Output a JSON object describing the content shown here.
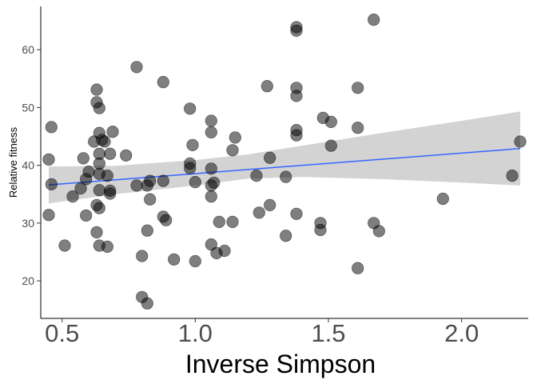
{
  "chart_data": {
    "type": "scatter",
    "title": "",
    "xlabel": "Inverse Simpson",
    "ylabel": "Relative fitness",
    "xlim": [
      0.42,
      2.25
    ],
    "ylim": [
      13.5,
      67.5
    ],
    "x_ticks": [
      0.5,
      1.0,
      1.5,
      2.0
    ],
    "x_tick_labels": [
      "0.5",
      "1.0",
      "1.5",
      "2.0"
    ],
    "y_ticks": [
      20,
      30,
      40,
      50,
      60
    ],
    "y_tick_labels": [
      "20",
      "30",
      "40",
      "50",
      "60"
    ],
    "grid": false,
    "legend": "none",
    "point_color": "#000000",
    "point_opacity": 0.5,
    "trend_color": "#3366FF",
    "band_color": "#D3D3D3",
    "points": [
      [
        0.45,
        41.0
      ],
      [
        0.45,
        31.4
      ],
      [
        0.46,
        46.6
      ],
      [
        0.46,
        36.7
      ],
      [
        0.51,
        26.1
      ],
      [
        0.54,
        34.6
      ],
      [
        0.57,
        36.0
      ],
      [
        0.58,
        41.2
      ],
      [
        0.59,
        37.6
      ],
      [
        0.59,
        31.3
      ],
      [
        0.6,
        38.9
      ],
      [
        0.62,
        44.1
      ],
      [
        0.63,
        53.1
      ],
      [
        0.63,
        50.9
      ],
      [
        0.63,
        28.4
      ],
      [
        0.63,
        33.1
      ],
      [
        0.64,
        49.9
      ],
      [
        0.64,
        45.6
      ],
      [
        0.64,
        42.0
      ],
      [
        0.64,
        40.3
      ],
      [
        0.64,
        38.5
      ],
      [
        0.64,
        35.7
      ],
      [
        0.64,
        32.6
      ],
      [
        0.64,
        26.1
      ],
      [
        0.65,
        44.4
      ],
      [
        0.66,
        44.1
      ],
      [
        0.67,
        38.2
      ],
      [
        0.67,
        25.9
      ],
      [
        0.68,
        42.0
      ],
      [
        0.68,
        35.6
      ],
      [
        0.68,
        35.1
      ],
      [
        0.69,
        45.8
      ],
      [
        0.74,
        41.7
      ],
      [
        0.78,
        57.0
      ],
      [
        0.78,
        36.5
      ],
      [
        0.8,
        24.3
      ],
      [
        0.8,
        17.2
      ],
      [
        0.82,
        36.5
      ],
      [
        0.82,
        28.7
      ],
      [
        0.82,
        16.1
      ],
      [
        0.83,
        37.3
      ],
      [
        0.83,
        34.1
      ],
      [
        0.88,
        54.4
      ],
      [
        0.88,
        37.3
      ],
      [
        0.88,
        31.1
      ],
      [
        0.89,
        30.5
      ],
      [
        0.92,
        23.7
      ],
      [
        0.98,
        49.8
      ],
      [
        0.98,
        40.3
      ],
      [
        0.98,
        39.5
      ],
      [
        0.99,
        43.5
      ],
      [
        1.0,
        37.1
      ],
      [
        1.0,
        23.4
      ],
      [
        1.06,
        47.7
      ],
      [
        1.06,
        45.7
      ],
      [
        1.06,
        39.4
      ],
      [
        1.06,
        36.5
      ],
      [
        1.06,
        34.6
      ],
      [
        1.06,
        26.3
      ],
      [
        1.07,
        37.0
      ],
      [
        1.08,
        24.8
      ],
      [
        1.09,
        30.2
      ],
      [
        1.11,
        25.2
      ],
      [
        1.14,
        42.6
      ],
      [
        1.14,
        30.2
      ],
      [
        1.15,
        44.8
      ],
      [
        1.23,
        38.2
      ],
      [
        1.24,
        31.8
      ],
      [
        1.27,
        53.7
      ],
      [
        1.28,
        41.3
      ],
      [
        1.28,
        33.1
      ],
      [
        1.34,
        38.0
      ],
      [
        1.34,
        27.8
      ],
      [
        1.38,
        63.9
      ],
      [
        1.38,
        63.3
      ],
      [
        1.38,
        53.4
      ],
      [
        1.38,
        52.0
      ],
      [
        1.38,
        46.1
      ],
      [
        1.38,
        45.2
      ],
      [
        1.38,
        31.6
      ],
      [
        1.47,
        30.0
      ],
      [
        1.47,
        28.8
      ],
      [
        1.48,
        48.2
      ],
      [
        1.51,
        47.5
      ],
      [
        1.51,
        43.4
      ],
      [
        1.61,
        53.4
      ],
      [
        1.61,
        46.5
      ],
      [
        1.61,
        22.2
      ],
      [
        1.67,
        65.2
      ],
      [
        1.67,
        30.0
      ],
      [
        1.69,
        28.6
      ],
      [
        1.93,
        34.2
      ],
      [
        2.19,
        38.2
      ],
      [
        2.22,
        44.1
      ]
    ],
    "trend_line": {
      "x": [
        0.45,
        2.22
      ],
      "y": [
        36.6,
        42.9
      ]
    },
    "confidence_band": {
      "x": [
        0.45,
        0.7,
        1.0,
        1.2,
        1.4,
        1.7,
        2.0,
        2.22
      ],
      "upper": [
        39.8,
        39.9,
        40.9,
        41.9,
        43.4,
        45.6,
        47.7,
        49.3
      ],
      "lower": [
        33.4,
        35.0,
        36.5,
        37.7,
        38.0,
        37.6,
        37.0,
        36.5
      ]
    }
  }
}
